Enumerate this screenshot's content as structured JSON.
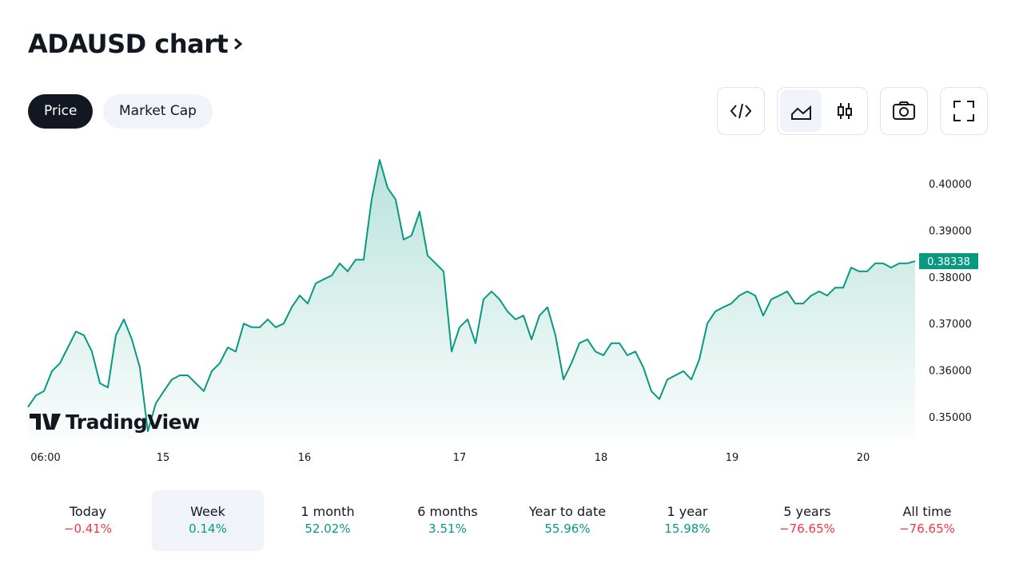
{
  "header": {
    "title": "ADAUSD chart",
    "tabs": [
      "Price",
      "Market Cap"
    ]
  },
  "chart_data": {
    "type": "line",
    "color": "#089981",
    "watermark": "TradingView",
    "values": [
      0.3521,
      0.3546,
      0.3555,
      0.3598,
      0.3615,
      0.3649,
      0.3683,
      0.3675,
      0.364,
      0.3572,
      0.3563,
      0.3675,
      0.3709,
      0.3666,
      0.3606,
      0.3469,
      0.3529,
      0.3555,
      0.358,
      0.3589,
      0.3589,
      0.3572,
      0.3555,
      0.3598,
      0.3615,
      0.3649,
      0.364,
      0.37,
      0.3692,
      0.3692,
      0.3709,
      0.3692,
      0.37,
      0.3735,
      0.376,
      0.3743,
      0.3786,
      0.3795,
      0.3803,
      0.3829,
      0.3812,
      0.3837,
      0.3837,
      0.3966,
      0.4051,
      0.3991,
      0.3966,
      0.388,
      0.3889,
      0.394,
      0.3846,
      0.3829,
      0.3812,
      0.364,
      0.3692,
      0.3709,
      0.3658,
      0.3752,
      0.3769,
      0.3752,
      0.3726,
      0.3709,
      0.3717,
      0.3666,
      0.3717,
      0.3735,
      0.3675,
      0.358,
      0.3615,
      0.3658,
      0.3666,
      0.364,
      0.3632,
      0.3658,
      0.3658,
      0.3632,
      0.364,
      0.3606,
      0.3555,
      0.3538,
      0.358,
      0.3589,
      0.3598,
      0.358,
      0.3623,
      0.37,
      0.3726,
      0.3735,
      0.3743,
      0.376,
      0.3769,
      0.376,
      0.3717,
      0.3752,
      0.376,
      0.3769,
      0.3743,
      0.3743,
      0.376,
      0.3769,
      0.376,
      0.3777,
      0.3777,
      0.382,
      0.3812,
      0.3812,
      0.3829,
      0.3829,
      0.382,
      0.3829,
      0.3829,
      0.38338
    ],
    "last_value": 0.38338,
    "xlim": [
      0,
      111
    ],
    "xticks": [
      {
        "value": 2.2,
        "label": "06:00"
      },
      {
        "value": 16.9,
        "label": "15"
      },
      {
        "value": 34.6,
        "label": "16"
      },
      {
        "value": 54,
        "label": "17"
      },
      {
        "value": 71.7,
        "label": "18"
      },
      {
        "value": 88.1,
        "label": "19"
      },
      {
        "value": 104.5,
        "label": "20"
      }
    ],
    "ylim": [
      0.3452,
      0.4077
    ],
    "yticks": [
      {
        "value": 0.35,
        "label": "0.35000"
      },
      {
        "value": 0.36,
        "label": "0.36000"
      },
      {
        "value": 0.37,
        "label": "0.37000"
      },
      {
        "value": 0.38,
        "label": "0.38000"
      },
      {
        "value": 0.39,
        "label": "0.39000"
      },
      {
        "value": 0.4,
        "label": "0.40000"
      }
    ]
  },
  "periods": [
    {
      "label": "Today",
      "change": "−0.41%",
      "color": "#f23645"
    },
    {
      "label": "Week",
      "change": "0.14%",
      "color": "#089981"
    },
    {
      "label": "1 month",
      "change": "52.02%",
      "color": "#089981"
    },
    {
      "label": "6 months",
      "change": "3.51%",
      "color": "#089981"
    },
    {
      "label": "Year to date",
      "change": "55.96%",
      "color": "#089981"
    },
    {
      "label": "1 year",
      "change": "15.98%",
      "color": "#089981"
    },
    {
      "label": "5 years",
      "change": "−76.65%",
      "color": "#f23645"
    },
    {
      "label": "All time",
      "change": "−76.65%",
      "color": "#f23645"
    }
  ]
}
